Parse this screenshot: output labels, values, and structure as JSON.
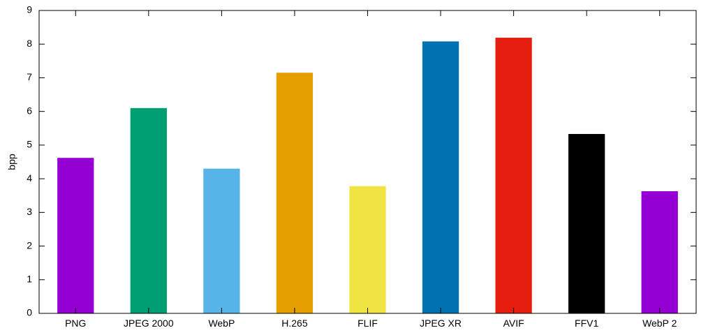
{
  "chart_data": {
    "type": "bar",
    "title": "",
    "xlabel": "",
    "ylabel": "bpp",
    "ylim": [
      0,
      9
    ],
    "yticks": [
      0,
      1,
      2,
      3,
      4,
      5,
      6,
      7,
      8,
      9
    ],
    "grid": false,
    "legend": "none",
    "categories": [
      "PNG",
      "JPEG 2000",
      "WebP",
      "H.265",
      "FLIF",
      "JPEG XR",
      "AVIF",
      "FFV1",
      "WebP 2"
    ],
    "values": [
      4.62,
      6.1,
      4.3,
      7.15,
      3.78,
      8.08,
      8.19,
      5.33,
      3.63
    ],
    "colors": [
      "#9400d3",
      "#009e73",
      "#56b4e9",
      "#e69f00",
      "#f0e442",
      "#0072b2",
      "#e51e10",
      "#000000",
      "#9400d3"
    ]
  }
}
